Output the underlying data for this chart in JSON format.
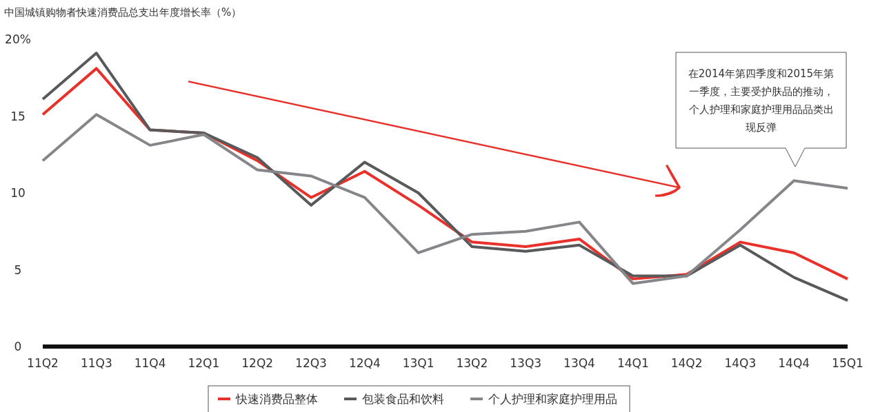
{
  "chart_data": {
    "type": "line",
    "title": "中国城镇购物者快速消费品总支出年度增长率（%）",
    "categories": [
      "11Q2",
      "11Q3",
      "11Q4",
      "12Q1",
      "12Q2",
      "12Q3",
      "12Q4",
      "13Q1",
      "13Q2",
      "13Q3",
      "13Q4",
      "14Q1",
      "14Q2",
      "14Q3",
      "14Q4",
      "15Q1"
    ],
    "series": [
      {
        "name": "快速消费品整体",
        "color": "#e8312a",
        "values": [
          15.1,
          18.1,
          14.1,
          13.9,
          12.1,
          9.7,
          11.4,
          9.2,
          6.8,
          6.5,
          7.0,
          4.4,
          4.7,
          6.8,
          6.1,
          4.4
        ]
      },
      {
        "name": "包装食品和饮料",
        "color": "#58595b",
        "values": [
          16.1,
          19.1,
          14.1,
          13.9,
          12.3,
          9.2,
          12.0,
          10.0,
          6.5,
          6.2,
          6.6,
          4.6,
          4.6,
          6.6,
          4.5,
          3.0
        ]
      },
      {
        "name": "个人护理和家庭护理用品",
        "color": "#858689",
        "values": [
          12.1,
          15.1,
          13.1,
          13.8,
          11.5,
          11.1,
          9.7,
          6.1,
          7.3,
          7.5,
          8.1,
          4.1,
          4.6,
          7.6,
          10.8,
          10.3
        ]
      }
    ],
    "ylim": [
      0,
      20
    ],
    "yticks": [
      0,
      5,
      10,
      15,
      {
        "value": 20,
        "label": "20%"
      }
    ],
    "grid": false,
    "legend": "bottom",
    "marker": "none",
    "line_style": "solid",
    "annotations": [
      "在2014年第四季度和2015年第一季度，主要受护肤品的推动，个人护理和家庭护理用品品类出现反弹"
    ]
  }
}
